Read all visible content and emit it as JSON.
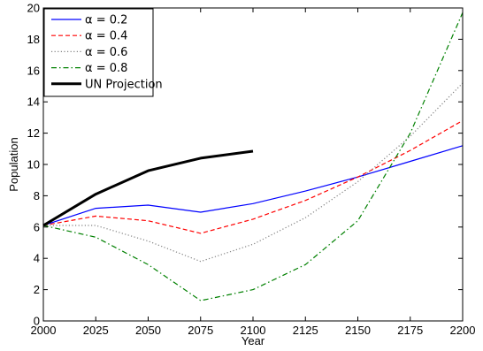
{
  "chart_data": {
    "type": "line",
    "title": "",
    "xlabel": "Year",
    "ylabel": "Population",
    "xlim": [
      2000,
      2200
    ],
    "ylim": [
      0,
      20
    ],
    "xticks": [
      2000,
      2025,
      2050,
      2075,
      2100,
      2125,
      2150,
      2175,
      2200
    ],
    "yticks": [
      0,
      2,
      4,
      6,
      8,
      10,
      12,
      14,
      16,
      18,
      20
    ],
    "grid": false,
    "legend_position": "top-left",
    "series": [
      {
        "name": "α = 0.2",
        "color": "#0000ff",
        "style": "solid",
        "x": [
          2000,
          2025,
          2050,
          2075,
          2100,
          2125,
          2150,
          2175,
          2200
        ],
        "y": [
          6.1,
          7.2,
          7.4,
          6.95,
          7.5,
          8.3,
          9.2,
          10.2,
          11.2
        ]
      },
      {
        "name": "α = 0.4",
        "color": "#ff0000",
        "style": "dashed",
        "x": [
          2000,
          2025,
          2050,
          2075,
          2100,
          2125,
          2150,
          2175,
          2200
        ],
        "y": [
          6.1,
          6.7,
          6.4,
          5.6,
          6.5,
          7.7,
          9.2,
          10.9,
          12.8
        ]
      },
      {
        "name": "α = 0.6",
        "color": "#808080",
        "style": "dotted",
        "x": [
          2000,
          2025,
          2050,
          2075,
          2100,
          2125,
          2150,
          2175,
          2200
        ],
        "y": [
          6.1,
          6.1,
          5.1,
          3.8,
          4.9,
          6.6,
          8.9,
          11.8,
          15.2
        ]
      },
      {
        "name": "α = 0.8",
        "color": "#008000",
        "style": "dashdot",
        "x": [
          2000,
          2025,
          2050,
          2075,
          2100,
          2125,
          2150,
          2175,
          2200
        ],
        "y": [
          6.1,
          5.35,
          3.6,
          1.3,
          2.0,
          3.6,
          6.4,
          12.0,
          19.7
        ]
      },
      {
        "name": "UN Projection",
        "color": "#000000",
        "style": "thick",
        "x": [
          2000,
          2025,
          2050,
          2075,
          2100
        ],
        "y": [
          6.1,
          8.1,
          9.6,
          10.4,
          10.85
        ]
      }
    ]
  }
}
